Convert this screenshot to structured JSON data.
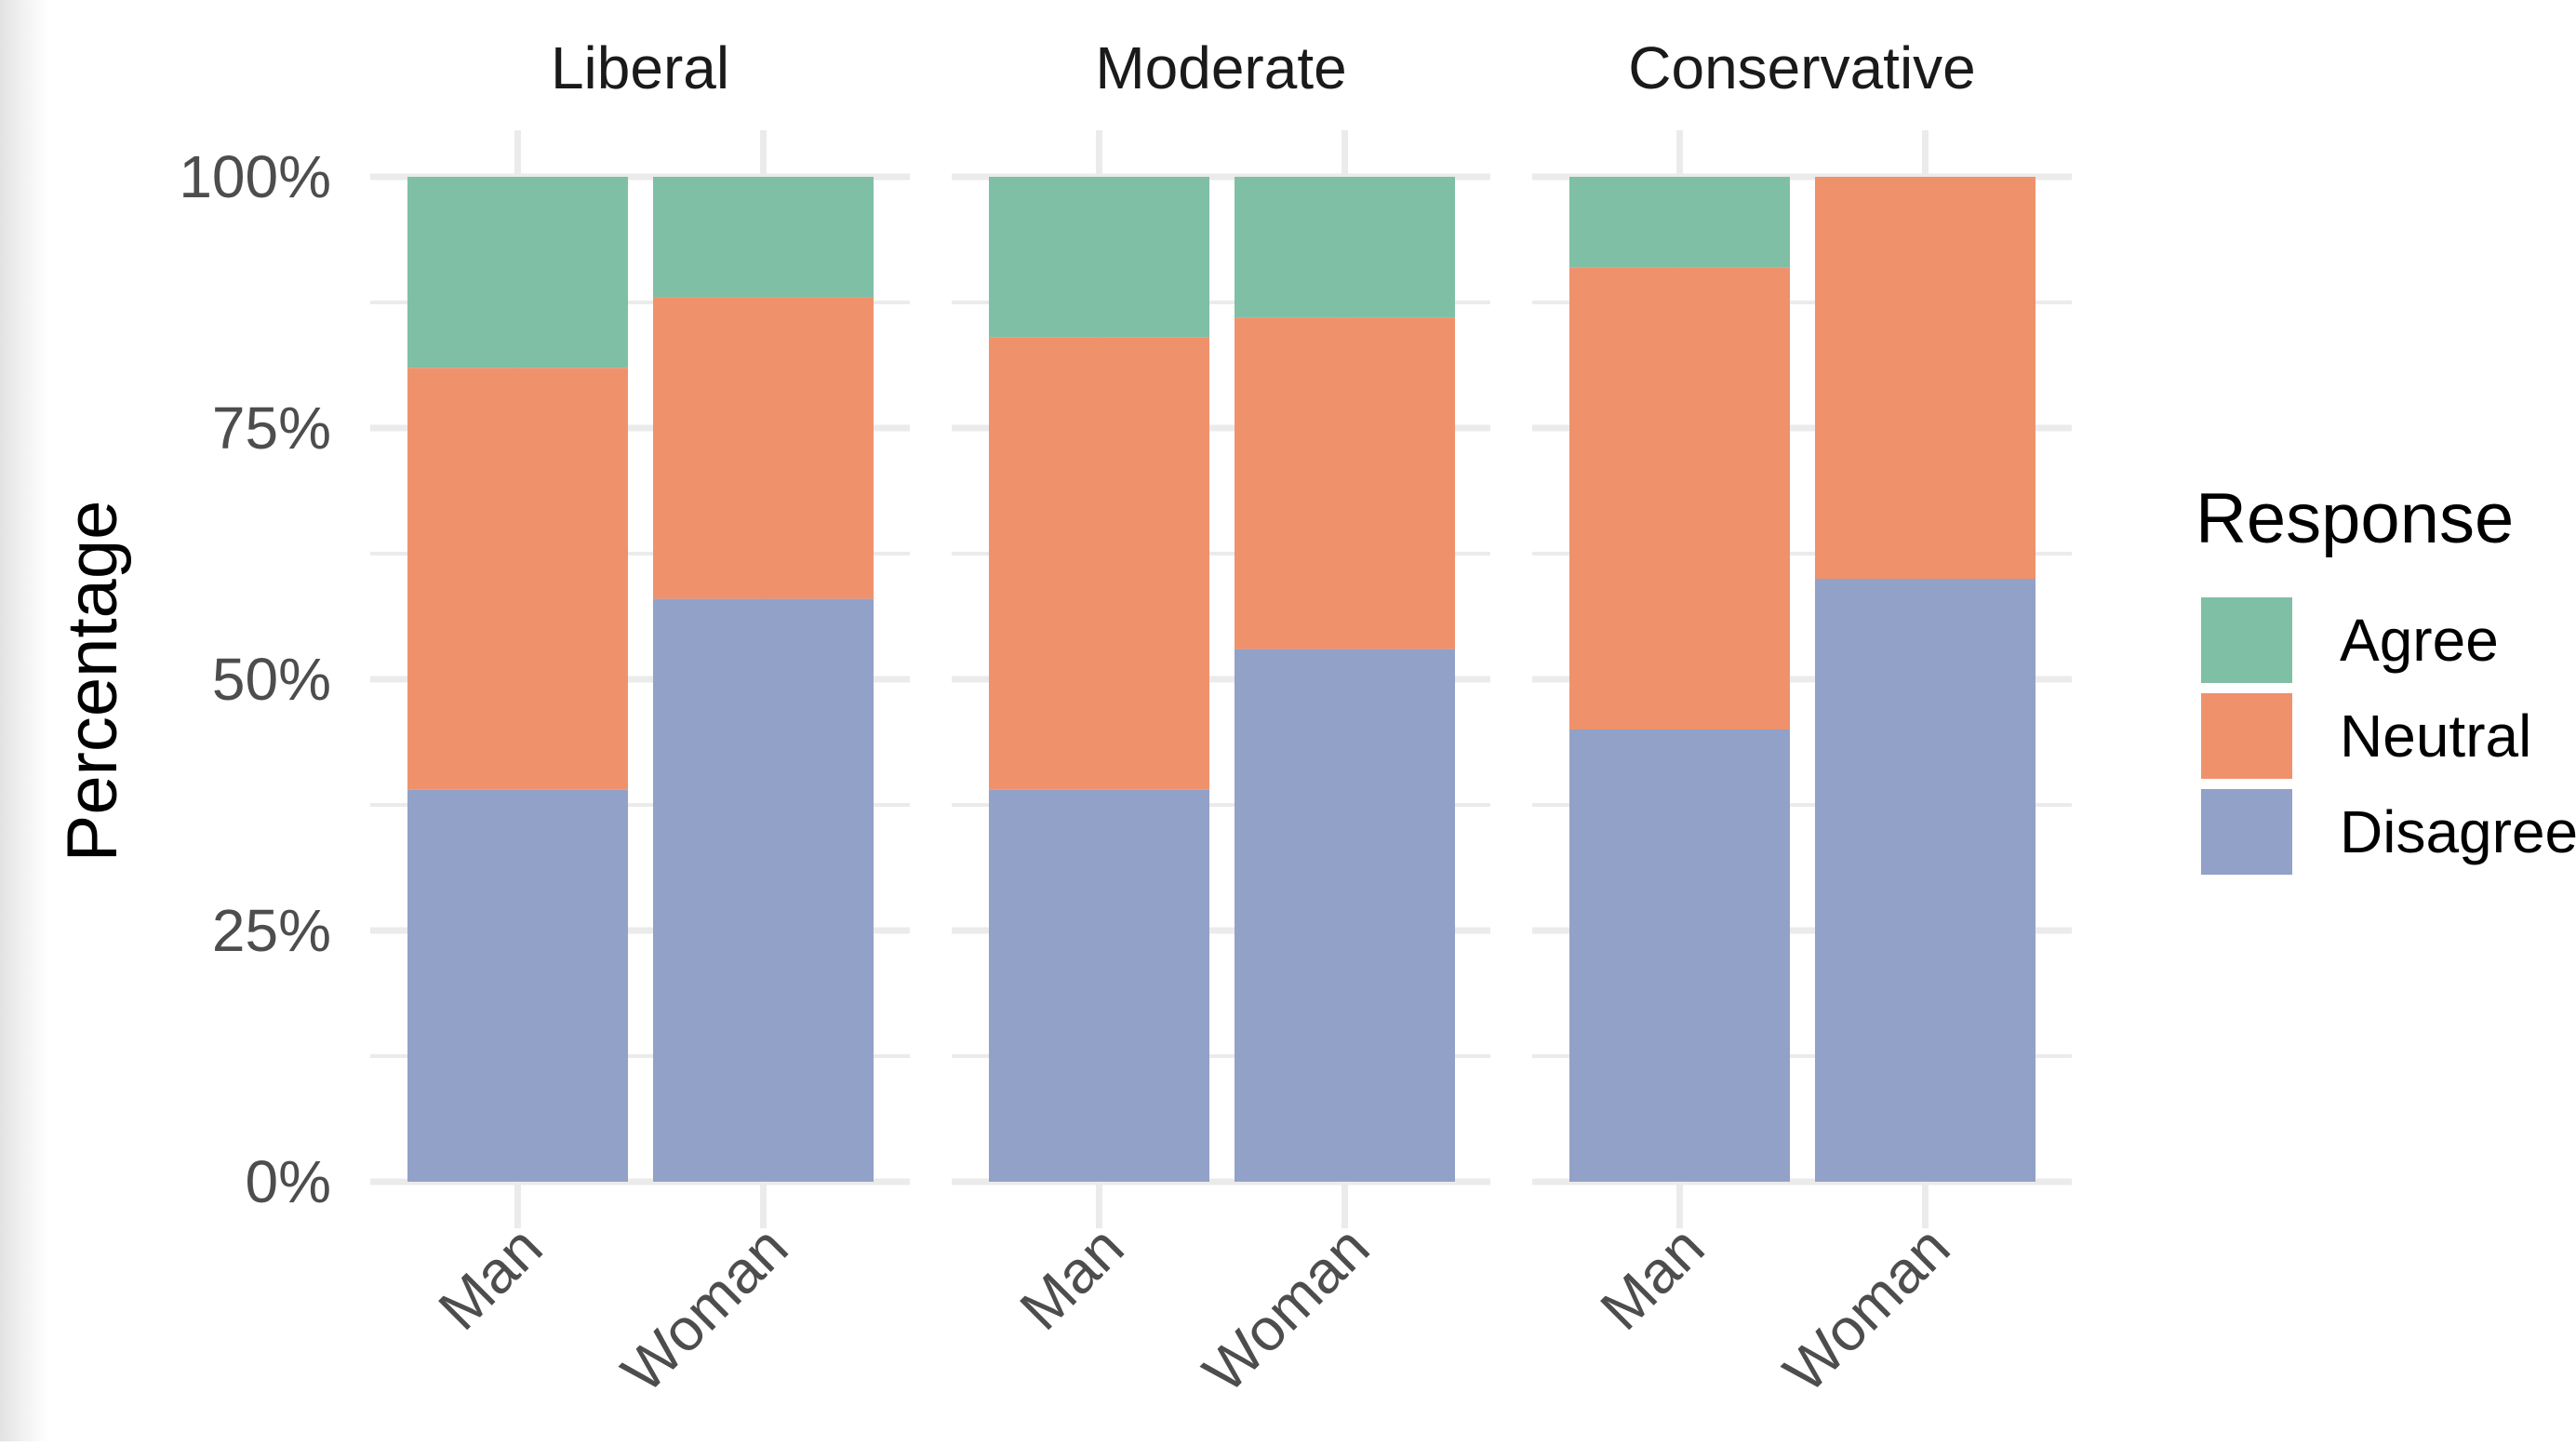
{
  "chart_data": {
    "type": "bar",
    "stacked": true,
    "percent": true,
    "title": "",
    "xlabel": "",
    "ylabel": "Percentage",
    "ylim": [
      0,
      100
    ],
    "y_ticks": [
      "0%",
      "25%",
      "50%",
      "75%",
      "100%"
    ],
    "facets": [
      "Liberal",
      "Moderate",
      "Conservative"
    ],
    "categories": [
      "Man",
      "Woman"
    ],
    "legend": {
      "title": "Response",
      "position": "right",
      "entries": [
        "Agree",
        "Neutral",
        "Disagree"
      ]
    },
    "grid": true,
    "colors": {
      "Agree": "#7fbfa6",
      "Neutral": "#ef926c",
      "Disagree": "#92a1c8",
      "grid": "#ebebeb",
      "text": "#4d4d4d"
    },
    "series": [
      {
        "name": "Disagree",
        "values": {
          "Liberal": [
            39,
            58
          ],
          "Moderate": [
            39,
            53
          ],
          "Conservative": [
            45,
            60
          ]
        }
      },
      {
        "name": "Neutral",
        "values": {
          "Liberal": [
            42,
            30
          ],
          "Moderate": [
            45,
            33
          ],
          "Conservative": [
            46,
            40
          ]
        }
      },
      {
        "name": "Agree",
        "values": {
          "Liberal": [
            19,
            12
          ],
          "Moderate": [
            16,
            14
          ],
          "Conservative": [
            9,
            0
          ]
        }
      }
    ]
  }
}
